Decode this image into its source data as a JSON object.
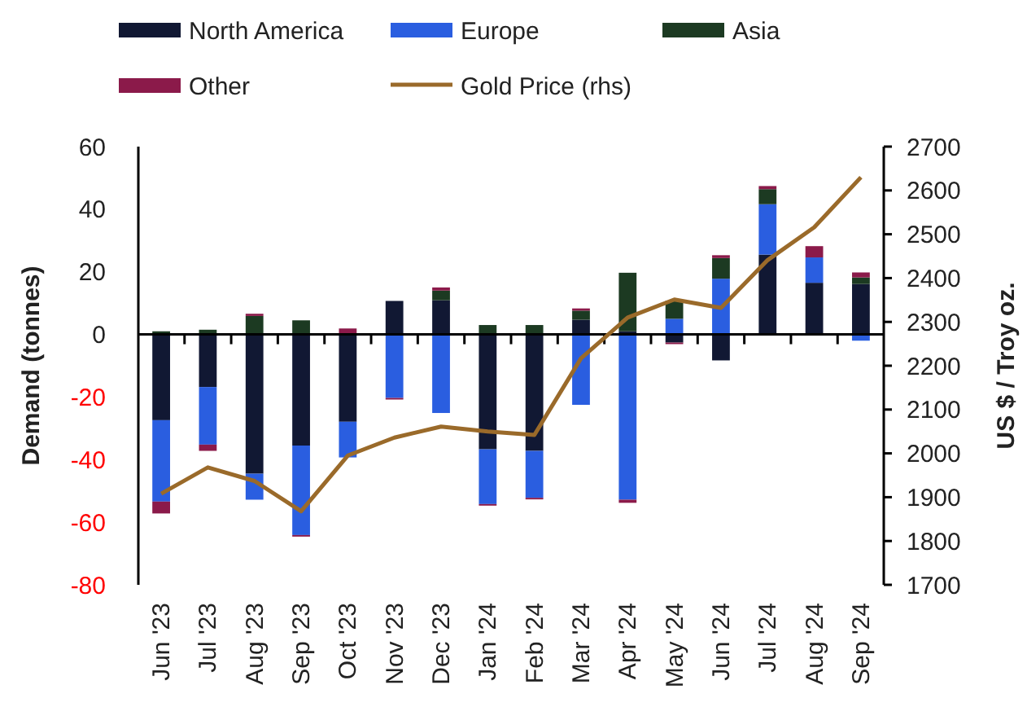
{
  "chart_data": {
    "type": "bar",
    "stacked": true,
    "categories": [
      "Jun '23",
      "Jul '23",
      "Aug '23",
      "Sep '23",
      "Oct '23",
      "Nov '23",
      "Dec '23",
      "Jan '24",
      "Feb '24",
      "Mar '24",
      "Apr '24",
      "May '24",
      "Jun '24",
      "Jul '24",
      "Aug '24",
      "Sep '24"
    ],
    "ylabel": "Demand (tonnes)",
    "y2label": "US $ / Troy oz.",
    "ylim": [
      -80,
      60
    ],
    "yticks": [
      -80,
      -60,
      -40,
      -20,
      0,
      20,
      40,
      60
    ],
    "y2lim": [
      1700,
      2700
    ],
    "y2ticks": [
      1700,
      1800,
      1900,
      2000,
      2100,
      2200,
      2300,
      2400,
      2500,
      2600,
      2700
    ],
    "legend": "top",
    "series": [
      {
        "name": "North America",
        "color": "#111833",
        "values": [
          -27.4,
          -16.8,
          -44.5,
          -35.5,
          -27.9,
          10.7,
          10.9,
          -36.7,
          -37.2,
          4.7,
          1,
          -2.6,
          -8.3,
          25.5,
          16.5,
          16.1
        ]
      },
      {
        "name": "Europe",
        "color": "#2a5ee0",
        "values": [
          -26,
          -18.4,
          -8.3,
          -28.6,
          -11.4,
          -20.3,
          -25.1,
          -17.5,
          -15,
          -22.5,
          -52.8,
          5,
          17.8,
          16.1,
          8.1,
          -2
        ]
      },
      {
        "name": "Asia",
        "color": "#1c3a22",
        "values": [
          1,
          1.5,
          5.9,
          4.5,
          null,
          null,
          3.1,
          3,
          3,
          2.9,
          18.7,
          5.8,
          6.6,
          4.8,
          null,
          2.1
        ]
      },
      {
        "name": "Other",
        "color": "#8b1a4a",
        "values": [
          -3.8,
          -2,
          0.7,
          -0.5,
          1.9,
          -0.5,
          1,
          -0.5,
          -0.5,
          0.7,
          -1,
          -0.5,
          0.9,
          1,
          3.6,
          1.6
        ]
      },
      {
        "name": "Gold Price (rhs)",
        "type": "line",
        "axis": "y2",
        "color": "#9a6a2a",
        "values": [
          1908,
          1968,
          1937,
          1868,
          1995,
          2036,
          2061,
          2050,
          2042,
          2217,
          2310,
          2351,
          2332,
          2441,
          2516,
          2630
        ]
      }
    ]
  }
}
